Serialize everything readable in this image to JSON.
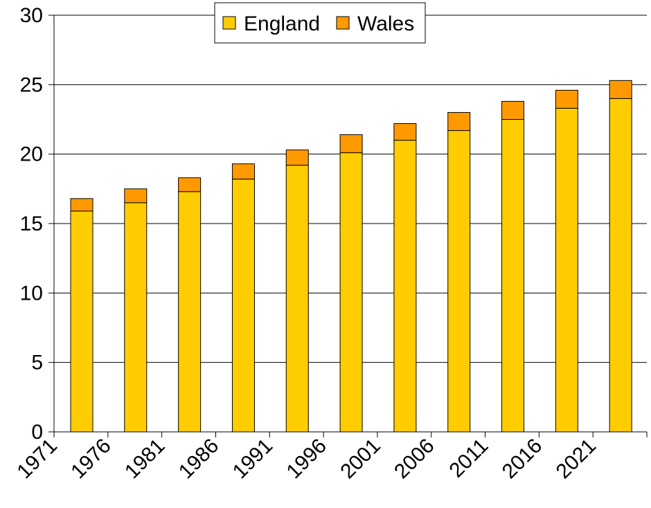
{
  "chart_data": {
    "type": "bar",
    "stacked": true,
    "title": "",
    "xlabel": "",
    "ylabel": "",
    "categories": [
      "1971",
      "1976",
      "1981",
      "1986",
      "1991",
      "1996",
      "2001",
      "2006",
      "2011",
      "2016",
      "2021"
    ],
    "series": [
      {
        "name": "England",
        "color": "#ffcc00",
        "values": [
          15.9,
          16.5,
          17.3,
          18.2,
          19.2,
          20.1,
          21.0,
          21.7,
          22.5,
          23.3,
          24.0
        ]
      },
      {
        "name": "Wales",
        "color": "#ff9900",
        "values": [
          0.9,
          1.0,
          1.0,
          1.1,
          1.1,
          1.3,
          1.2,
          1.3,
          1.3,
          1.3,
          1.3
        ]
      }
    ],
    "ylim": [
      0,
      30
    ],
    "yticks": [
      0,
      5,
      10,
      15,
      20,
      25,
      30
    ],
    "grid": true,
    "legend_position": "top-center"
  }
}
